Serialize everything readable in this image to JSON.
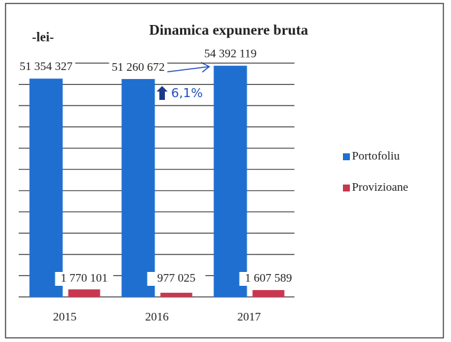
{
  "chart_data": {
    "type": "bar",
    "title": "Dinamica expunere bruta",
    "unit": "-lei-",
    "annotation": "6,1%",
    "categories": [
      "2015",
      "2016",
      "2017"
    ],
    "series": [
      {
        "name": "Portofoliu",
        "color": "#1f6fd0",
        "values": [
          51354327,
          51260672,
          54392119
        ],
        "value_labels": [
          "51 354 327",
          "51 260 672",
          "54 392 119"
        ]
      },
      {
        "name": "Provizioane",
        "color": "#c8374f",
        "values": [
          1770101,
          977025,
          1607589
        ],
        "value_labels": [
          "1 770 101",
          "977 025",
          "1 607 589"
        ]
      }
    ],
    "ylim": [
      0,
      55000000
    ],
    "yticks": [
      0,
      5000000,
      10000000,
      15000000,
      20000000,
      25000000,
      30000000,
      35000000,
      40000000,
      45000000,
      50000000,
      55000000
    ],
    "grid": true,
    "legend": "right"
  }
}
